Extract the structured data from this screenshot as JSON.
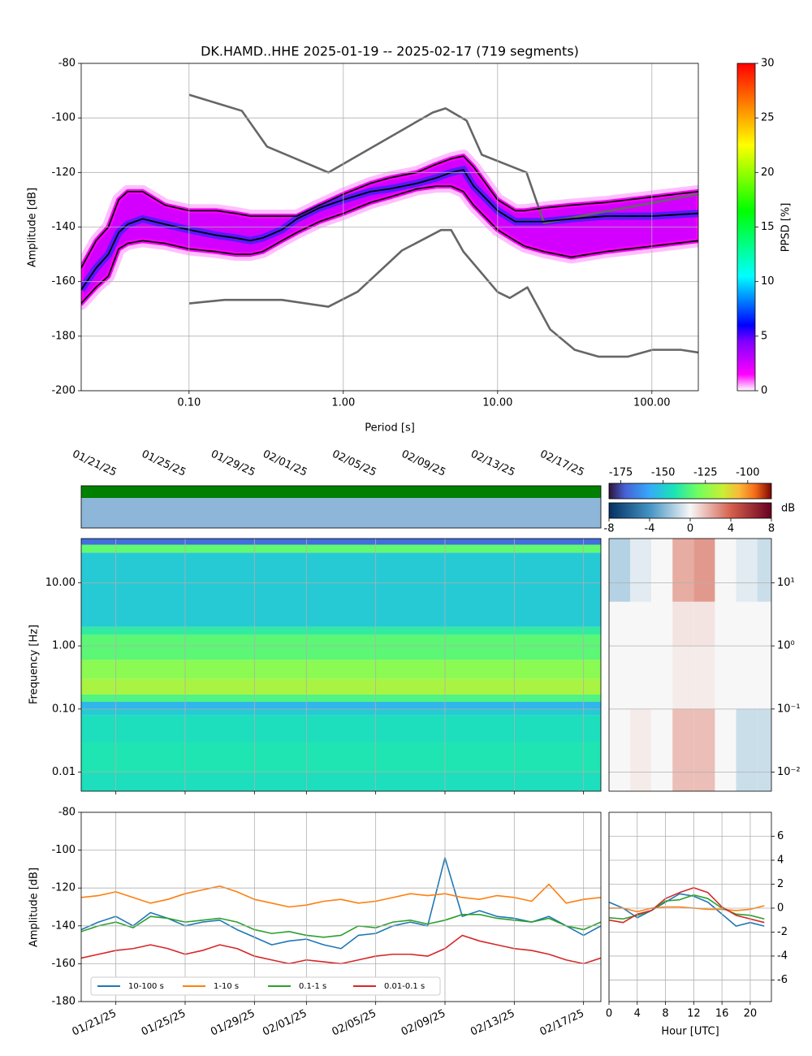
{
  "chart_data": [
    {
      "type": "line",
      "title": "DK.HAMD..HHE   2025-01-19 -- 2025-02-17  (719 segments)",
      "x_label": "Period [s]",
      "y_label": "Amplitude [dB]",
      "xscale": "log",
      "xlim": [
        0.02,
        200
      ],
      "xticks": [
        {
          "value": 0.1,
          "label": "0.10"
        },
        {
          "value": 1,
          "label": "1.00"
        },
        {
          "value": 10,
          "label": "10.00"
        },
        {
          "value": 100,
          "label": "100.00"
        }
      ],
      "ylim": [
        -200,
        -80
      ],
      "yticks": [
        -200,
        -180,
        -160,
        -140,
        -120,
        -100,
        -80
      ],
      "grid": true,
      "colorbar": {
        "label": "PPSD [%]",
        "lim": [
          0,
          30
        ],
        "ticks": [
          0,
          5,
          10,
          15,
          20,
          25,
          30
        ],
        "colormap": "pqlx"
      },
      "series": [
        {
          "color": "#666666",
          "x": [
            0.1,
            0.22,
            0.32,
            0.8,
            3.8,
            4.6,
            6.3,
            7.9,
            15.4,
            20,
            200
          ],
          "values": [
            -91.5,
            -97.4,
            -110.5,
            -120,
            -98,
            -96.5,
            -101,
            -113.5,
            -120,
            -138.5,
            -128
          ]
        },
        {
          "color": "#666666",
          "x": [
            0.1,
            0.17,
            0.4,
            0.8,
            1.24,
            2.4,
            4.3,
            5,
            6,
            10,
            12,
            15.6,
            21.9,
            31.6,
            45,
            70,
            101,
            154,
            200
          ],
          "values": [
            -168,
            -166.7,
            -166.7,
            -169.2,
            -163.7,
            -148.6,
            -141.1,
            -141.1,
            -149,
            -163.8,
            -166,
            -162.1,
            -177.5,
            -185,
            -187.5,
            -187.5,
            -185,
            -185,
            -186
          ]
        },
        {
          "color": "#000000",
          "x": [
            0.02,
            0.025,
            0.03,
            0.035,
            0.04,
            0.05,
            0.07,
            0.1,
            0.15,
            0.2,
            0.25,
            0.3,
            0.4,
            0.5,
            0.7,
            1,
            1.5,
            2,
            3,
            4,
            5,
            6,
            7,
            10,
            13,
            15,
            20,
            30,
            50,
            100,
            200
          ],
          "values": [
            -155,
            -145,
            -140,
            -130,
            -127,
            -127,
            -132,
            -134,
            -134,
            -135,
            -136,
            -136,
            -136,
            -136,
            -132,
            -128,
            -124,
            -122,
            -120,
            -117,
            -115,
            -114,
            -118,
            -130,
            -134,
            -134,
            -133,
            -132,
            -131,
            -129,
            -127
          ]
        },
        {
          "color": "#000000",
          "x": [
            0.02,
            0.025,
            0.03,
            0.035,
            0.04,
            0.05,
            0.07,
            0.1,
            0.15,
            0.2,
            0.25,
            0.3,
            0.4,
            0.5,
            0.7,
            1,
            1.5,
            2,
            3,
            4,
            5,
            6,
            7,
            10,
            13,
            15,
            20,
            30,
            50,
            100,
            200
          ],
          "values": [
            -163,
            -155,
            -150,
            -142,
            -139,
            -137,
            -139,
            -141,
            -143,
            -144,
            -145,
            -144,
            -141,
            -137,
            -133,
            -130,
            -127,
            -126,
            -124,
            -122,
            -120,
            -119,
            -125,
            -134,
            -138,
            -138,
            -138,
            -137,
            -136,
            -136,
            -135
          ]
        },
        {
          "color": "#000000",
          "x": [
            0.02,
            0.025,
            0.03,
            0.035,
            0.04,
            0.05,
            0.07,
            0.1,
            0.15,
            0.2,
            0.25,
            0.3,
            0.4,
            0.5,
            0.7,
            1,
            1.5,
            2,
            3,
            4,
            5,
            6,
            7,
            10,
            13,
            15,
            20,
            30,
            50,
            100,
            200
          ],
          "values": [
            -168,
            -162,
            -158,
            -148,
            -146,
            -145,
            -146,
            -148,
            -149,
            -150,
            -150,
            -149,
            -145,
            -142,
            -138,
            -135,
            -131,
            -129,
            -126,
            -125,
            -125,
            -127,
            -132,
            -141,
            -145,
            -147,
            -149,
            -151,
            -149,
            -147,
            -145
          ]
        }
      ]
    },
    {
      "type": "heatmap",
      "y_label": "Frequency [Hz]",
      "xlim": [
        "2025-01-19",
        "2025-02-18"
      ],
      "xticks": [
        {
          "value": "2025-01-21",
          "label": "01/21/25"
        },
        {
          "value": "2025-01-25",
          "label": "01/25/25"
        },
        {
          "value": "2025-01-29",
          "label": "01/29/25"
        },
        {
          "value": "2025-02-01",
          "label": "02/01/25"
        },
        {
          "value": "2025-02-05",
          "label": "02/05/25"
        },
        {
          "value": "2025-02-09",
          "label": "02/09/25"
        },
        {
          "value": "2025-02-13",
          "label": "02/13/25"
        },
        {
          "value": "2025-02-17",
          "label": "02/17/25"
        }
      ],
      "yscale": "log",
      "ylim": [
        0.005,
        50
      ],
      "yticks": [
        {
          "value": 0.01,
          "label": "0.01"
        },
        {
          "value": 0.1,
          "label": "0.10"
        },
        {
          "value": 1,
          "label": "1.00"
        },
        {
          "value": 10,
          "label": "10.00"
        }
      ],
      "grid": true,
      "ybins": [
        0.005,
        0.01,
        0.03,
        0.08,
        0.1,
        0.13,
        0.17,
        0.3,
        0.6,
        1.5,
        2,
        30,
        40,
        50
      ],
      "values": [
        -145,
        -143,
        -145,
        -150,
        -155,
        -135,
        -120,
        -125,
        -133,
        -140,
        -150,
        -132,
        -170
      ],
      "colorbar": {
        "lim": [
          -182,
          -86
        ],
        "ticks": [
          -175,
          -150,
          -125,
          -100
        ],
        "colormap": "turbo"
      }
    },
    {
      "type": "heatmap",
      "xlim": [
        0,
        23
      ],
      "yscale": "log",
      "ylim": [
        0.005,
        50
      ],
      "yticks": [
        {
          "value": 0.01,
          "label": "10⁻²"
        },
        {
          "value": 0.1,
          "label": "10⁻¹"
        },
        {
          "value": 1,
          "label": "10⁰"
        },
        {
          "value": 10,
          "label": "10¹"
        }
      ],
      "grid": true,
      "xbins": [
        0,
        3,
        6,
        9,
        12,
        15,
        18,
        21,
        23
      ],
      "ybins": [
        0.005,
        0.1,
        1,
        5,
        50
      ],
      "values": [
        [
          0,
          0.3,
          0,
          1.5,
          1.5,
          0,
          -1,
          -1
        ],
        [
          0,
          0,
          0,
          0.3,
          0.3,
          0,
          0,
          0
        ],
        [
          0,
          0,
          0,
          0.5,
          0.5,
          0,
          0,
          0
        ],
        [
          -1.5,
          -0.5,
          0,
          2,
          2.5,
          0,
          -0.5,
          -1
        ]
      ],
      "colorbar": {
        "label": "dB",
        "lim": [
          -8,
          8
        ],
        "ticks": [
          -8,
          -4,
          0,
          4,
          8
        ],
        "colormap": "RdBu_r"
      }
    },
    {
      "type": "line",
      "y_label": "Amplitude [dB]",
      "x": [
        "2025-01-19",
        "2025-01-20",
        "2025-01-21",
        "2025-01-22",
        "2025-01-23",
        "2025-01-24",
        "2025-01-25",
        "2025-01-26",
        "2025-01-27",
        "2025-01-28",
        "2025-01-29",
        "2025-01-30",
        "2025-01-31",
        "2025-02-01",
        "2025-02-02",
        "2025-02-03",
        "2025-02-04",
        "2025-02-05",
        "2025-02-06",
        "2025-02-07",
        "2025-02-08",
        "2025-02-09",
        "2025-02-10",
        "2025-02-11",
        "2025-02-12",
        "2025-02-13",
        "2025-02-14",
        "2025-02-15",
        "2025-02-16",
        "2025-02-17",
        "2025-02-18"
      ],
      "xlim": [
        "2025-01-19",
        "2025-02-18"
      ],
      "xticks": [
        {
          "value": "2025-01-21",
          "label": "01/21/25"
        },
        {
          "value": "2025-01-25",
          "label": "01/25/25"
        },
        {
          "value": "2025-01-29",
          "label": "01/29/25"
        },
        {
          "value": "2025-02-01",
          "label": "02/01/25"
        },
        {
          "value": "2025-02-05",
          "label": "02/05/25"
        },
        {
          "value": "2025-02-09",
          "label": "02/09/25"
        },
        {
          "value": "2025-02-13",
          "label": "02/13/25"
        },
        {
          "value": "2025-02-17",
          "label": "02/17/25"
        }
      ],
      "ylim": [
        -180,
        -80
      ],
      "yticks": [
        -180,
        -160,
        -140,
        -120,
        -100,
        -80
      ],
      "grid": true,
      "legend": "lower left",
      "series": [
        {
          "name": "10-100 s",
          "color": "#1f77b4",
          "values": [
            -142,
            -138,
            -135,
            -140,
            -133,
            -136,
            -140,
            -138,
            -137,
            -142,
            -146,
            -150,
            -148,
            -147,
            -150,
            -152,
            -145,
            -144,
            -140,
            -138,
            -140,
            -104,
            -135,
            -132,
            -135,
            -136,
            -138,
            -135,
            -140,
            -145,
            -140
          ]
        },
        {
          "name": "1-10 s",
          "color": "#ff7f0e",
          "values": [
            -125,
            -124,
            -122,
            -125,
            -128,
            -126,
            -123,
            -121,
            -119,
            -122,
            -126,
            -128,
            -130,
            -129,
            -127,
            -126,
            -128,
            -127,
            -125,
            -123,
            -124,
            -123,
            -125,
            -126,
            -124,
            -125,
            -127,
            -118,
            -128,
            -126,
            -125
          ]
        },
        {
          "name": "0.1-1 s",
          "color": "#2ca02c",
          "values": [
            -143,
            -140,
            -138,
            -141,
            -135,
            -136,
            -138,
            -137,
            -136,
            -138,
            -142,
            -144,
            -143,
            -145,
            -146,
            -145,
            -140,
            -141,
            -138,
            -137,
            -139,
            -137,
            -134,
            -134,
            -136,
            -137,
            -138,
            -136,
            -140,
            -142,
            -138
          ]
        },
        {
          "name": "0.01-0.1 s",
          "color": "#d62728",
          "values": [
            -157,
            -155,
            -153,
            -152,
            -150,
            -152,
            -155,
            -153,
            -150,
            -152,
            -156,
            -158,
            -160,
            -158,
            -159,
            -160,
            -158,
            -156,
            -155,
            -155,
            -156,
            -152,
            -145,
            -148,
            -150,
            -152,
            -153,
            -155,
            -158,
            -160,
            -157
          ]
        }
      ]
    },
    {
      "type": "line",
      "x_label": "Hour [UTC]",
      "x": [
        0,
        2,
        4,
        6,
        8,
        10,
        12,
        14,
        16,
        18,
        20,
        22
      ],
      "xlim": [
        0,
        23
      ],
      "xticks": [
        0,
        4,
        8,
        12,
        16,
        20
      ],
      "ylim": [
        -7.8,
        8
      ],
      "yticks": [
        -6,
        -4,
        -2,
        0,
        2,
        4,
        6
      ],
      "grid": true,
      "series": [
        {
          "color": "#1f77b4",
          "values": [
            0.5,
            0,
            -0.8,
            -0.2,
            0.5,
            1.2,
            1,
            0.5,
            -0.5,
            -1.5,
            -1.2,
            -1.5
          ]
        },
        {
          "color": "#ff7f0e",
          "values": [
            0,
            0,
            -0.3,
            0,
            0.1,
            0.1,
            0,
            -0.1,
            -0.1,
            -0.2,
            -0.1,
            0.2
          ]
        },
        {
          "color": "#2ca02c",
          "values": [
            -0.8,
            -0.9,
            -0.6,
            -0.2,
            0.6,
            0.7,
            1.1,
            0.8,
            0,
            -0.5,
            -0.6,
            -0.9
          ]
        },
        {
          "color": "#d62728",
          "values": [
            -1,
            -1.2,
            -0.5,
            -0.2,
            0.8,
            1.3,
            1.7,
            1.3,
            0.1,
            -0.6,
            -0.9,
            -1.2
          ]
        }
      ]
    }
  ]
}
